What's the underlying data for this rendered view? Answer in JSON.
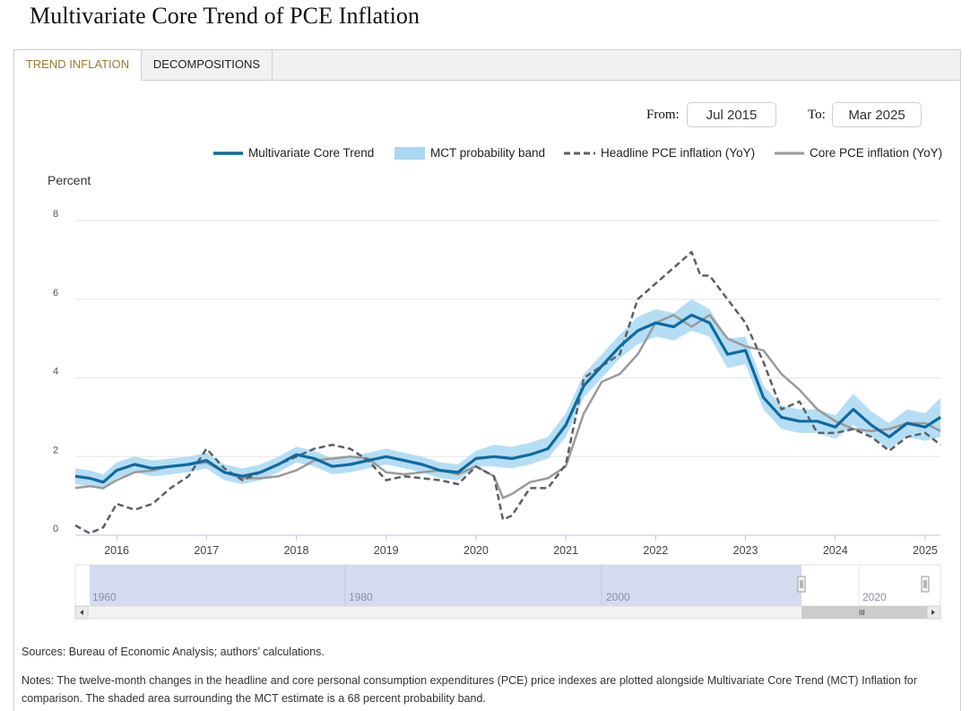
{
  "page": {
    "title": "Multivariate Core Trend of PCE Inflation"
  },
  "tabs": [
    {
      "label": "TREND INFLATION",
      "active": true
    },
    {
      "label": "DECOMPOSITIONS",
      "active": false
    }
  ],
  "range": {
    "from_label": "From:",
    "from_value": "Jul 2015",
    "to_label": "To:",
    "to_value": "Mar 2025"
  },
  "navigator": {
    "labels": [
      "1960",
      "1980",
      "2000",
      "2020"
    ],
    "handle_glyph": "III"
  },
  "footer": {
    "sources": "Sources: Bureau of Economic Analysis; authors’ calculations.",
    "notes_line1": "Notes: The twelve-month changes in the headline and core personal consumption expenditures (PCE) price indexes are plotted alongside Multivariate Core Trend (MCT) Inflation for",
    "notes_line2": "comparison. The shaded area surrounding the MCT estimate is a 68 percent probability band."
  },
  "colors": {
    "mct": "#0f6aa0",
    "band": "#a8d8f2",
    "headline": "#5c6066",
    "core": "#9a9a9a",
    "tab_active": "#9a7a2f",
    "navigator": "#d5dbee"
  },
  "chart_data": {
    "type": "line",
    "ylabel": "Percent",
    "ylim": [
      0,
      8
    ],
    "yticks": [
      0,
      2,
      4,
      6,
      8
    ],
    "xlim": [
      2015.54,
      2025.17
    ],
    "xticks": [
      2016,
      2017,
      2018,
      2019,
      2020,
      2021,
      2022,
      2023,
      2024,
      2025
    ],
    "xtick_labels": [
      "2016",
      "2017",
      "2018",
      "2019",
      "2020",
      "2021",
      "2022",
      "2023",
      "2024",
      "2025"
    ],
    "grid": true,
    "legend_position": "top-right",
    "series": [
      {
        "name": "Multivariate Core Trend",
        "style": "solid-thick",
        "x": [
          2015.54,
          2015.7,
          2015.85,
          2016.0,
          2016.2,
          2016.4,
          2016.6,
          2016.8,
          2017.0,
          2017.2,
          2017.4,
          2017.6,
          2017.8,
          2018.0,
          2018.2,
          2018.4,
          2018.6,
          2018.8,
          2019.0,
          2019.2,
          2019.4,
          2019.6,
          2019.8,
          2020.0,
          2020.2,
          2020.4,
          2020.6,
          2020.8,
          2021.0,
          2021.2,
          2021.4,
          2021.6,
          2021.8,
          2022.0,
          2022.2,
          2022.4,
          2022.6,
          2022.8,
          2023.0,
          2023.2,
          2023.4,
          2023.6,
          2023.8,
          2024.0,
          2024.2,
          2024.4,
          2024.6,
          2024.8,
          2025.0,
          2025.17
        ],
        "values": [
          1.5,
          1.45,
          1.35,
          1.65,
          1.8,
          1.7,
          1.75,
          1.8,
          1.9,
          1.6,
          1.5,
          1.6,
          1.8,
          2.05,
          1.95,
          1.75,
          1.8,
          1.9,
          2.0,
          1.9,
          1.8,
          1.65,
          1.6,
          1.95,
          2.0,
          1.95,
          2.05,
          2.2,
          2.8,
          3.8,
          4.3,
          4.8,
          5.2,
          5.4,
          5.3,
          5.6,
          5.4,
          4.6,
          4.7,
          3.5,
          3.0,
          2.9,
          2.9,
          2.75,
          3.2,
          2.8,
          2.5,
          2.85,
          2.75,
          3.0
        ]
      },
      {
        "name": "MCT probability band",
        "style": "band",
        "x": [
          2015.54,
          2015.7,
          2015.85,
          2016.0,
          2016.2,
          2016.4,
          2016.6,
          2016.8,
          2017.0,
          2017.2,
          2017.4,
          2017.6,
          2017.8,
          2018.0,
          2018.2,
          2018.4,
          2018.6,
          2018.8,
          2019.0,
          2019.2,
          2019.4,
          2019.6,
          2019.8,
          2020.0,
          2020.2,
          2020.4,
          2020.6,
          2020.8,
          2021.0,
          2021.2,
          2021.4,
          2021.6,
          2021.8,
          2022.0,
          2022.2,
          2022.4,
          2022.6,
          2022.8,
          2023.0,
          2023.2,
          2023.4,
          2023.6,
          2023.8,
          2024.0,
          2024.2,
          2024.4,
          2024.6,
          2024.8,
          2025.0,
          2025.17
        ],
        "upper": [
          1.7,
          1.65,
          1.55,
          1.85,
          2.0,
          1.9,
          1.95,
          2.0,
          2.1,
          1.8,
          1.7,
          1.8,
          2.0,
          2.25,
          2.15,
          1.95,
          2.0,
          2.1,
          2.2,
          2.1,
          2.0,
          1.85,
          1.8,
          2.15,
          2.3,
          2.25,
          2.35,
          2.5,
          3.1,
          4.1,
          4.6,
          5.1,
          5.55,
          5.75,
          5.65,
          6.0,
          5.75,
          5.0,
          5.05,
          3.8,
          3.3,
          3.2,
          3.2,
          3.05,
          3.6,
          3.15,
          2.85,
          3.2,
          3.1,
          3.5
        ],
        "lower": [
          1.3,
          1.25,
          1.15,
          1.45,
          1.6,
          1.5,
          1.55,
          1.6,
          1.7,
          1.4,
          1.3,
          1.4,
          1.6,
          1.85,
          1.75,
          1.55,
          1.6,
          1.7,
          1.8,
          1.7,
          1.6,
          1.45,
          1.4,
          1.75,
          1.75,
          1.7,
          1.8,
          1.95,
          2.5,
          3.5,
          4.0,
          4.5,
          4.85,
          5.05,
          4.95,
          5.2,
          5.05,
          4.25,
          4.35,
          3.2,
          2.7,
          2.6,
          2.6,
          2.45,
          2.8,
          2.5,
          2.2,
          2.5,
          2.4,
          2.5
        ]
      },
      {
        "name": "Headline PCE inflation (YoY)",
        "style": "dashed",
        "x": [
          2015.54,
          2015.7,
          2015.85,
          2016.0,
          2016.2,
          2016.4,
          2016.6,
          2016.8,
          2017.0,
          2017.2,
          2017.4,
          2017.6,
          2017.8,
          2018.0,
          2018.2,
          2018.4,
          2018.6,
          2018.8,
          2019.0,
          2019.2,
          2019.4,
          2019.6,
          2019.8,
          2020.0,
          2020.2,
          2020.3,
          2020.4,
          2020.6,
          2020.8,
          2021.0,
          2021.2,
          2021.4,
          2021.6,
          2021.8,
          2022.0,
          2022.2,
          2022.4,
          2022.5,
          2022.6,
          2022.8,
          2023.0,
          2023.2,
          2023.4,
          2023.6,
          2023.8,
          2024.0,
          2024.2,
          2024.4,
          2024.6,
          2024.8,
          2025.0,
          2025.17
        ],
        "values": [
          0.25,
          0.05,
          0.2,
          0.8,
          0.65,
          0.8,
          1.2,
          1.5,
          2.2,
          1.7,
          1.4,
          1.6,
          1.8,
          2.0,
          2.2,
          2.3,
          2.2,
          1.9,
          1.4,
          1.5,
          1.45,
          1.4,
          1.3,
          1.75,
          1.5,
          0.4,
          0.5,
          1.2,
          1.2,
          1.8,
          4.0,
          4.3,
          4.6,
          6.0,
          6.4,
          6.8,
          7.2,
          6.6,
          6.6,
          6.0,
          5.4,
          4.4,
          3.2,
          3.4,
          2.6,
          2.6,
          2.7,
          2.5,
          2.15,
          2.5,
          2.6,
          2.3
        ]
      },
      {
        "name": "Core PCE inflation (YoY)",
        "style": "solid-grey",
        "x": [
          2015.54,
          2015.7,
          2015.85,
          2016.0,
          2016.2,
          2016.4,
          2016.6,
          2016.8,
          2017.0,
          2017.2,
          2017.4,
          2017.6,
          2017.8,
          2018.0,
          2018.2,
          2018.4,
          2018.6,
          2018.8,
          2019.0,
          2019.2,
          2019.4,
          2019.6,
          2019.8,
          2020.0,
          2020.2,
          2020.3,
          2020.4,
          2020.6,
          2020.8,
          2021.0,
          2021.2,
          2021.4,
          2021.6,
          2021.8,
          2022.0,
          2022.2,
          2022.4,
          2022.6,
          2022.8,
          2023.0,
          2023.2,
          2023.4,
          2023.6,
          2023.8,
          2024.0,
          2024.2,
          2024.4,
          2024.6,
          2024.8,
          2025.0,
          2025.17
        ],
        "values": [
          1.2,
          1.25,
          1.2,
          1.4,
          1.6,
          1.65,
          1.75,
          1.8,
          1.85,
          1.6,
          1.45,
          1.45,
          1.5,
          1.65,
          1.9,
          1.95,
          2.0,
          1.95,
          1.6,
          1.55,
          1.6,
          1.65,
          1.55,
          1.75,
          1.5,
          0.95,
          1.05,
          1.35,
          1.45,
          1.75,
          3.1,
          3.9,
          4.1,
          4.6,
          5.4,
          5.6,
          5.3,
          5.6,
          5.0,
          4.8,
          4.7,
          4.1,
          3.7,
          3.2,
          2.9,
          2.7,
          2.65,
          2.7,
          2.85,
          2.85,
          2.65
        ]
      }
    ]
  }
}
